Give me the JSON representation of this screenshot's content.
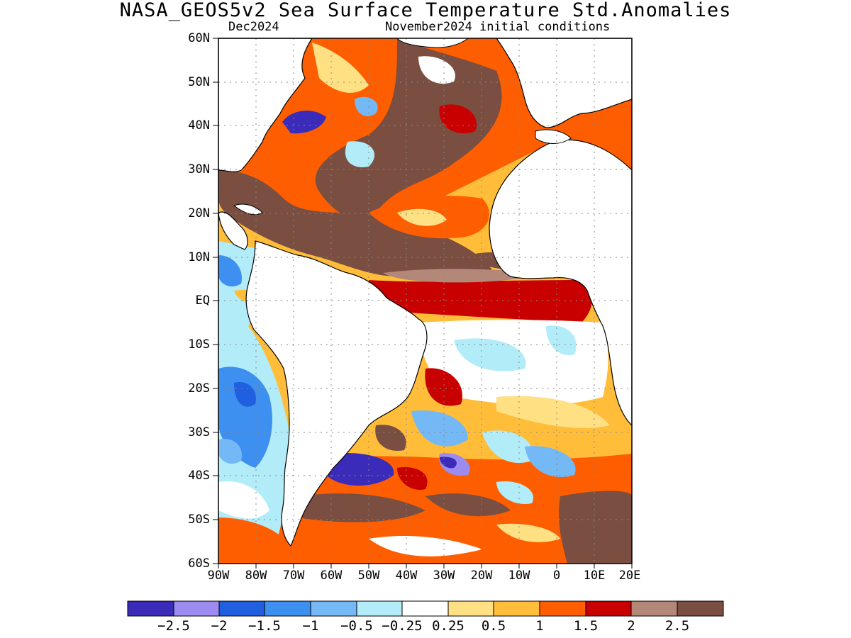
{
  "title": "NASA_GEOS5v2 Sea Surface Temperature Std.Anomalies",
  "subtitle_left": "Dec2024",
  "subtitle_right": "November2024 initial conditions",
  "lat_labels": [
    "60N",
    "50N",
    "40N",
    "30N",
    "20N",
    "10N",
    "EQ",
    "10S",
    "20S",
    "30S",
    "40S",
    "50S",
    "60S"
  ],
  "lon_labels": [
    "90W",
    "80W",
    "70W",
    "60W",
    "50W",
    "40W",
    "30W",
    "20W",
    "10W",
    "0",
    "10E",
    "20E"
  ],
  "colorbar": {
    "colors": [
      "#3a2bb8",
      "#9c8cf0",
      "#1f5fe0",
      "#3d8ff0",
      "#74b8f5",
      "#b2ecf8",
      "#ffffff",
      "#ffe184",
      "#ffbd3a",
      "#ff5e00",
      "#c80000",
      "#b38878",
      "#7a4e41"
    ],
    "labels": [
      "−2.5",
      "−2",
      "−1.5",
      "−1",
      "−0.5",
      "−0.25",
      "0.25",
      "0.5",
      "1",
      "1.5",
      "2",
      "2.5"
    ]
  }
}
